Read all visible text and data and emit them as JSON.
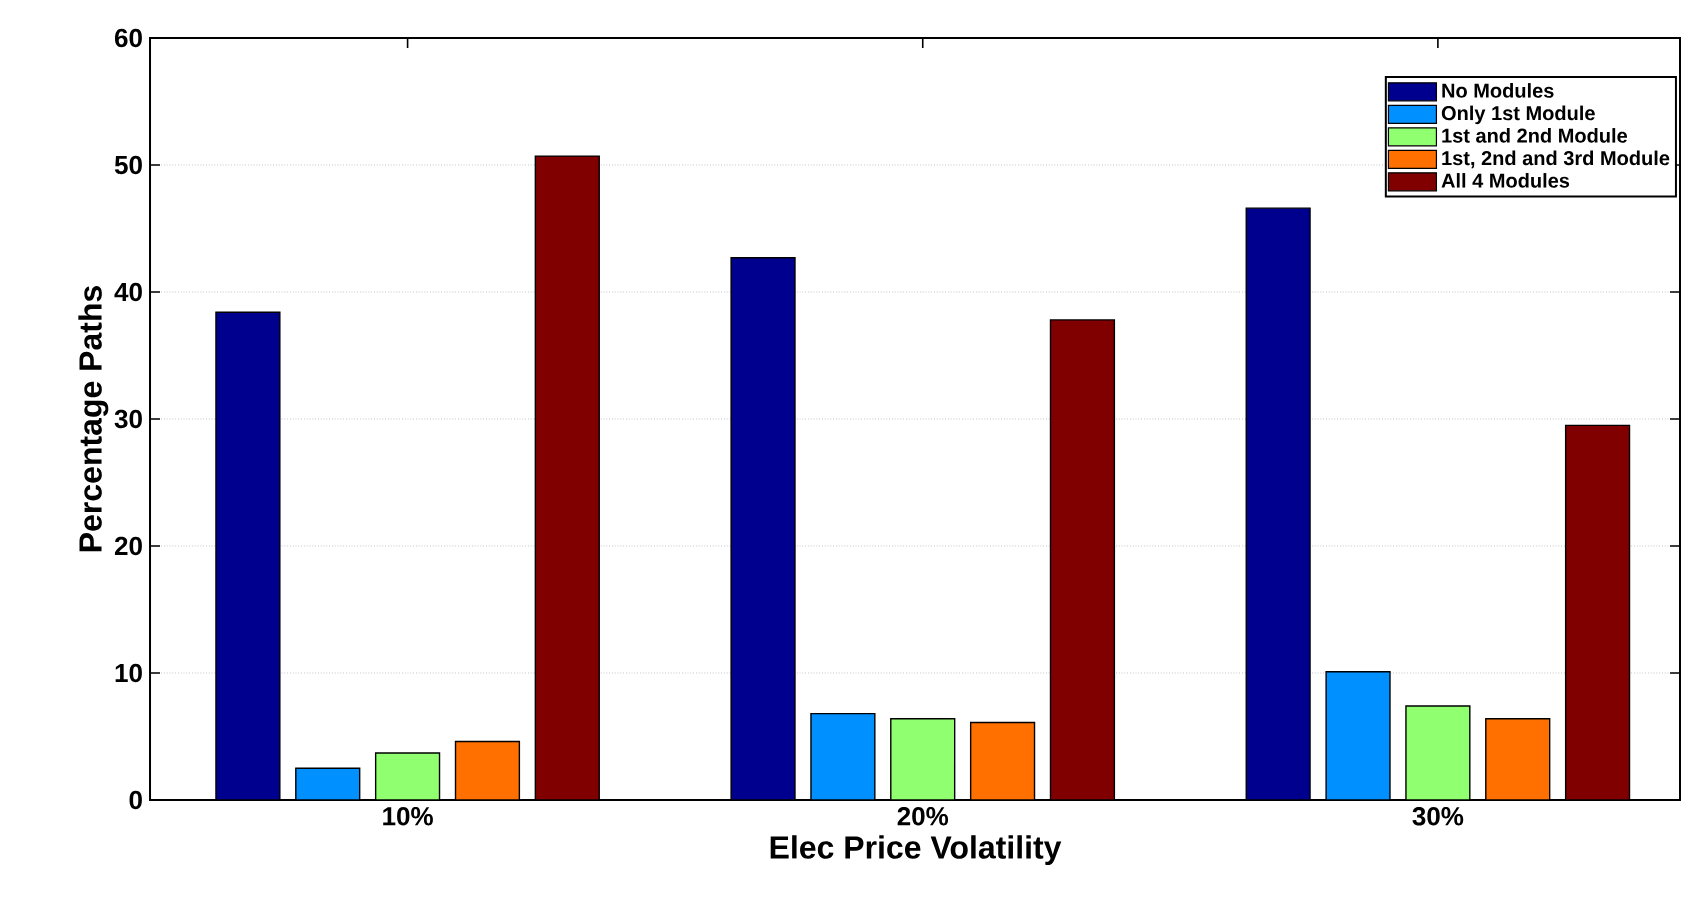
{
  "chart_data": {
    "type": "bar",
    "xlabel": "Elec Price Volatility",
    "ylabel": "Percentage Paths",
    "categories": [
      "10%",
      "20%",
      "30%"
    ],
    "series": [
      {
        "name": "No Modules",
        "color": "#00008f",
        "values": [
          38.4,
          42.7,
          46.6
        ]
      },
      {
        "name": "Only 1st Module",
        "color": "#0090ff",
        "values": [
          2.5,
          6.8,
          10.1
        ]
      },
      {
        "name": "1st and 2nd Module",
        "color": "#90ff70",
        "values": [
          3.7,
          6.4,
          7.4
        ]
      },
      {
        "name": "1st, 2nd and 3rd Module",
        "color": "#ff7000",
        "values": [
          4.6,
          6.1,
          6.4
        ]
      },
      {
        "name": "All 4 Modules",
        "color": "#800000",
        "values": [
          50.7,
          37.8,
          29.5
        ]
      }
    ],
    "ylim": [
      0,
      60
    ],
    "yticks": [
      0,
      10,
      20,
      30,
      40,
      50,
      60
    ],
    "grid": "y",
    "legend": "top right"
  }
}
